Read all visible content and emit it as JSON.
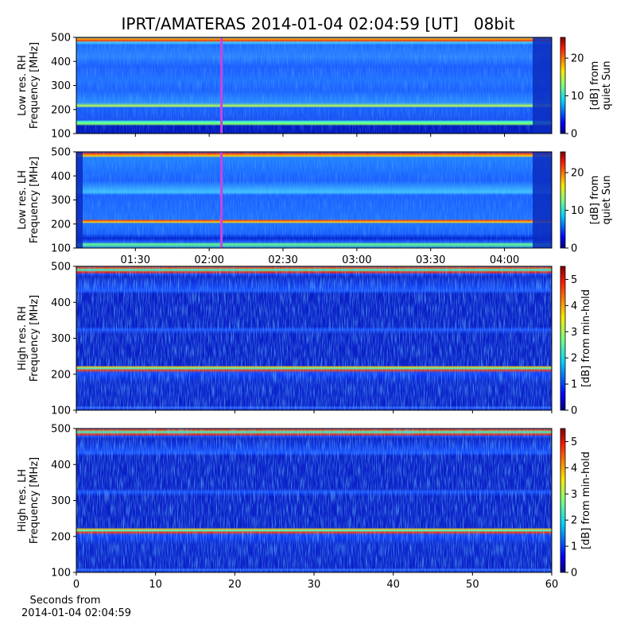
{
  "chart_data": [
    {
      "type": "spectrogram",
      "title": "IPRT/AMATERAS 2014-01-04 02:04:59 [UT]   08bit",
      "ylabel": [
        "Low res. RH",
        "Frequency [MHz]"
      ],
      "ylim": [
        100,
        500
      ],
      "yticks": [
        100,
        200,
        300,
        400,
        500
      ],
      "xlim": [
        1.1,
        4.32
      ],
      "sharex": 1,
      "marker_x": 2.083,
      "marker_color": "#cc44dd",
      "colormap": "jet",
      "clim": [
        0,
        25.5
      ],
      "cticks": [
        0,
        10,
        20
      ],
      "clabel": [
        "[dB] from",
        "quiet Sun"
      ]
    },
    {
      "type": "spectrogram",
      "ylabel": [
        "Low res. LH",
        "Frequency [MHz]"
      ],
      "ylim": [
        100,
        500
      ],
      "yticks": [
        100,
        200,
        300,
        400,
        500
      ],
      "xlim": [
        1.1,
        4.32
      ],
      "xticks": [
        {
          "value": 1.5,
          "label": "01:30"
        },
        {
          "value": 2.0,
          "label": "02:00"
        },
        {
          "value": 2.5,
          "label": "02:30"
        },
        {
          "value": 3.0,
          "label": "03:00"
        },
        {
          "value": 3.5,
          "label": "03:30"
        },
        {
          "value": 4.0,
          "label": "04:00"
        }
      ],
      "marker_x": 2.083,
      "marker_color": "#cc44dd",
      "colormap": "jet",
      "clim": [
        0,
        25.5
      ],
      "cticks": [
        0,
        10,
        20
      ],
      "clabel": [
        "[dB] from",
        "quiet Sun"
      ]
    },
    {
      "type": "spectrogram",
      "ylabel": [
        "High res. RH",
        "Frequency [MHz]"
      ],
      "ylim": [
        100,
        500
      ],
      "yticks": [
        100,
        200,
        300,
        400,
        500
      ],
      "xlim": [
        0,
        60
      ],
      "sharex": 3,
      "colormap": "jet",
      "clim": [
        0,
        5.5
      ],
      "cticks": [
        0,
        1,
        2,
        3,
        4,
        5
      ],
      "clabel": [
        "[dB] from min-hold"
      ]
    },
    {
      "type": "spectrogram",
      "ylabel": [
        "High res. LH",
        "Frequency [MHz]"
      ],
      "ylim": [
        100,
        500
      ],
      "yticks": [
        100,
        200,
        300,
        400,
        500
      ],
      "xlim": [
        0,
        60
      ],
      "xticks": [
        0,
        10,
        20,
        30,
        40,
        50,
        60
      ],
      "xlabel": [
        "Seconds from",
        "2014-01-04 02:04:59"
      ],
      "colormap": "jet",
      "clim": [
        0,
        5.5
      ],
      "cticks": [
        0,
        1,
        2,
        3,
        4,
        5
      ],
      "clabel": [
        "[dB] from min-hold"
      ]
    }
  ]
}
